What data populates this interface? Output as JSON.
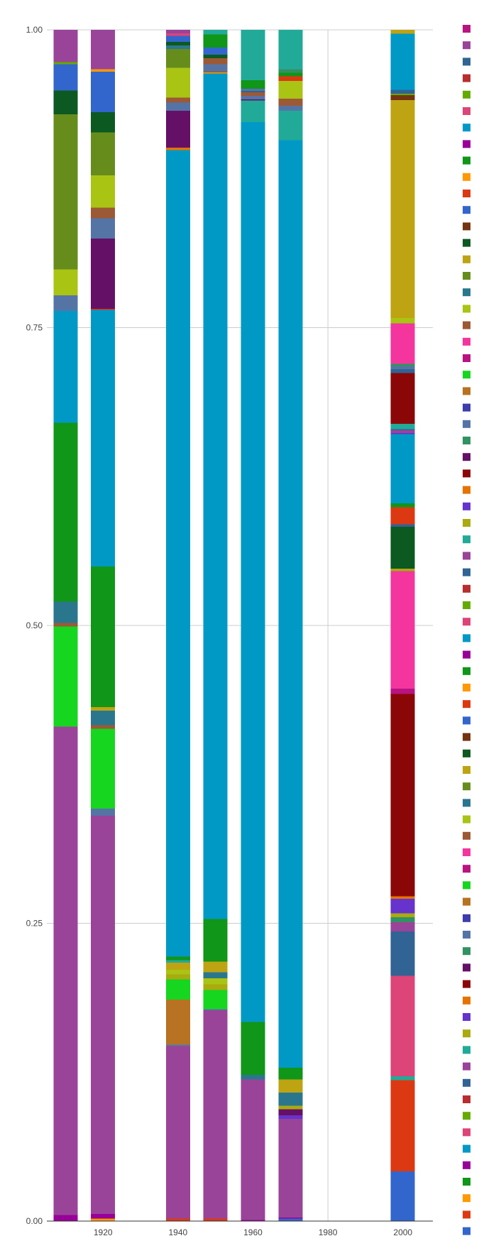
{
  "chart_data": {
    "type": "bar",
    "stacked": true,
    "normalized": true,
    "ylim": [
      0,
      1
    ],
    "yticks": [
      "0.00",
      "0.25",
      "0.50",
      "0.75",
      "1.00"
    ],
    "xlim": [
      1905,
      2008
    ],
    "xticks": [
      "1920",
      "1940",
      "1960",
      "1980",
      "2000"
    ],
    "grid": true,
    "legend": "right",
    "title": "",
    "xlabel": "",
    "ylabel": "",
    "palette": [
      "#3366cc",
      "#dc3912",
      "#ff9900",
      "#109618",
      "#990099",
      "#0099c6",
      "#dd4477",
      "#66aa00",
      "#b82e2e",
      "#316395",
      "#994499",
      "#22aa99",
      "#aaaa11",
      "#6633cc",
      "#e67300",
      "#8b0707",
      "#651067",
      "#329262",
      "#5574a6",
      "#3b3eac",
      "#b77322",
      "#16d620",
      "#b91383",
      "#f4359e",
      "#9c5935",
      "#a9c413",
      "#2a778d",
      "#668d1c",
      "#bea413",
      "#0c5922",
      "#743411"
    ],
    "bars": [
      {
        "x": 1910,
        "segments": [
          {
            "c": 4,
            "v": 0.005
          },
          {
            "c": 10,
            "v": 0.41
          },
          {
            "c": 21,
            "v": 0.084
          },
          {
            "c": 24,
            "v": 0.003
          },
          {
            "c": 26,
            "v": 0.018
          },
          {
            "c": 3,
            "v": 0.15
          },
          {
            "c": 5,
            "v": 0.094
          },
          {
            "c": 18,
            "v": 0.013
          },
          {
            "c": 25,
            "v": 0.022
          },
          {
            "c": 27,
            "v": 0.13
          },
          {
            "c": 29,
            "v": 0.02
          },
          {
            "c": 0,
            "v": 0.022
          },
          {
            "c": 7,
            "v": 0.002
          },
          {
            "c": 10,
            "v": 0.027
          }
        ]
      },
      {
        "x": 1920,
        "segments": [
          {
            "c": 2,
            "v": 0.002
          },
          {
            "c": 4,
            "v": 0.004
          },
          {
            "c": 10,
            "v": 0.334
          },
          {
            "c": 18,
            "v": 0.006
          },
          {
            "c": 21,
            "v": 0.067
          },
          {
            "c": 24,
            "v": 0.003
          },
          {
            "c": 26,
            "v": 0.012
          },
          {
            "c": 28,
            "v": 0.003
          },
          {
            "c": 3,
            "v": 0.118
          },
          {
            "c": 5,
            "v": 0.215
          },
          {
            "c": 1,
            "v": 0.001
          },
          {
            "c": 16,
            "v": 0.059
          },
          {
            "c": 18,
            "v": 0.017
          },
          {
            "c": 24,
            "v": 0.009
          },
          {
            "c": 25,
            "v": 0.027
          },
          {
            "c": 27,
            "v": 0.036
          },
          {
            "c": 29,
            "v": 0.017
          },
          {
            "c": 0,
            "v": 0.034
          },
          {
            "c": 2,
            "v": 0.002
          },
          {
            "c": 10,
            "v": 0.033
          }
        ]
      },
      {
        "x": 1940,
        "segments": [
          {
            "c": 1,
            "v": 0.002
          },
          {
            "c": 10,
            "v": 0.145
          },
          {
            "c": 18,
            "v": 0.001
          },
          {
            "c": 20,
            "v": 0.038
          },
          {
            "c": 21,
            "v": 0.017
          },
          {
            "c": 12,
            "v": 0.004
          },
          {
            "c": 25,
            "v": 0.004
          },
          {
            "c": 28,
            "v": 0.006
          },
          {
            "c": 11,
            "v": 0.002
          },
          {
            "c": 3,
            "v": 0.003
          },
          {
            "c": 5,
            "v": 0.677
          },
          {
            "c": 14,
            "v": 0.002
          },
          {
            "c": 16,
            "v": 0.031
          },
          {
            "c": 18,
            "v": 0.007
          },
          {
            "c": 24,
            "v": 0.004
          },
          {
            "c": 25,
            "v": 0.025
          },
          {
            "c": 27,
            "v": 0.016
          },
          {
            "c": 26,
            "v": 0.003
          },
          {
            "c": 29,
            "v": 0.003
          },
          {
            "c": 0,
            "v": 0.005
          },
          {
            "c": 6,
            "v": 0.002
          },
          {
            "c": 10,
            "v": 0.003
          }
        ]
      },
      {
        "x": 1950,
        "segments": [
          {
            "c": 1,
            "v": 0.002
          },
          {
            "c": 10,
            "v": 0.176
          },
          {
            "c": 18,
            "v": 0.001
          },
          {
            "c": 21,
            "v": 0.016
          },
          {
            "c": 12,
            "v": 0.005
          },
          {
            "c": 25,
            "v": 0.005
          },
          {
            "c": 26,
            "v": 0.005
          },
          {
            "c": 28,
            "v": 0.009
          },
          {
            "c": 3,
            "v": 0.036
          },
          {
            "c": 5,
            "v": 0.714
          },
          {
            "c": 2,
            "v": 0.001
          },
          {
            "c": 24,
            "v": 0.001
          },
          {
            "c": 18,
            "v": 0.006
          },
          {
            "c": 24,
            "v": 0.005
          },
          {
            "c": 29,
            "v": 0.003
          },
          {
            "c": 0,
            "v": 0.006
          },
          {
            "c": 3,
            "v": 0.011
          },
          {
            "c": 11,
            "v": 0.004
          }
        ]
      },
      {
        "x": 1960,
        "segments": [
          {
            "c": 4,
            "v": 0.001
          },
          {
            "c": 10,
            "v": 0.117
          },
          {
            "c": 26,
            "v": 0.004
          },
          {
            "c": 3,
            "v": 0.044
          },
          {
            "c": 5,
            "v": 0.75
          },
          {
            "c": 11,
            "v": 0.018
          },
          {
            "c": 16,
            "v": 0.001
          },
          {
            "c": 18,
            "v": 0.003
          },
          {
            "c": 24,
            "v": 0.003
          },
          {
            "c": 9,
            "v": 0.001
          },
          {
            "c": 18,
            "v": 0.002
          },
          {
            "c": 3,
            "v": 0.007
          },
          {
            "c": 11,
            "v": 0.042
          }
        ]
      },
      {
        "x": 1970,
        "segments": [
          {
            "c": 0,
            "v": 0.002
          },
          {
            "c": 4,
            "v": 0.001
          },
          {
            "c": 10,
            "v": 0.083
          },
          {
            "c": 13,
            "v": 0.003
          },
          {
            "c": 16,
            "v": 0.005
          },
          {
            "c": 12,
            "v": 0.003
          },
          {
            "c": 26,
            "v": 0.011
          },
          {
            "c": 28,
            "v": 0.011
          },
          {
            "c": 3,
            "v": 0.01
          },
          {
            "c": 5,
            "v": 0.78
          },
          {
            "c": 11,
            "v": 0.025
          },
          {
            "c": 18,
            "v": 0.004
          },
          {
            "c": 24,
            "v": 0.006
          },
          {
            "c": 25,
            "v": 0.015
          },
          {
            "c": 1,
            "v": 0.004
          },
          {
            "c": 3,
            "v": 0.003
          },
          {
            "c": 17,
            "v": 0.003
          },
          {
            "c": 11,
            "v": 0.033
          }
        ]
      },
      {
        "x": 2000,
        "segments": [
          {
            "c": 0,
            "v": 0.038
          },
          {
            "c": 1,
            "v": 0.07
          },
          {
            "c": 11,
            "v": 0.003
          },
          {
            "c": 6,
            "v": 0.077
          },
          {
            "c": 9,
            "v": 0.034
          },
          {
            "c": 10,
            "v": 0.007
          },
          {
            "c": 17,
            "v": 0.004
          },
          {
            "c": 12,
            "v": 0.003
          },
          {
            "c": 13,
            "v": 0.011
          },
          {
            "c": 14,
            "v": 0.002
          },
          {
            "c": 15,
            "v": 0.155
          },
          {
            "c": 22,
            "v": 0.004
          },
          {
            "c": 23,
            "v": 0.09
          },
          {
            "c": 12,
            "v": 0.002
          },
          {
            "c": 29,
            "v": 0.032
          },
          {
            "c": 9,
            "v": 0.002
          },
          {
            "c": 1,
            "v": 0.013
          },
          {
            "c": 3,
            "v": 0.003
          },
          {
            "c": 5,
            "v": 0.053
          },
          {
            "c": 13,
            "v": 0.001
          },
          {
            "c": 10,
            "v": 0.002
          },
          {
            "c": 9,
            "v": 0.001
          },
          {
            "c": 11,
            "v": 0.004
          },
          {
            "c": 15,
            "v": 0.039
          },
          {
            "c": 9,
            "v": 0.003
          },
          {
            "c": 18,
            "v": 0.002
          },
          {
            "c": 17,
            "v": 0.002
          },
          {
            "c": 23,
            "v": 0.031
          },
          {
            "c": 25,
            "v": 0.004
          },
          {
            "c": 28,
            "v": 0.167
          },
          {
            "c": 30,
            "v": 0.004
          },
          {
            "c": 7,
            "v": 0.001
          },
          {
            "c": 9,
            "v": 0.003
          },
          {
            "c": 5,
            "v": 0.043
          },
          {
            "c": 28,
            "v": 0.003
          }
        ]
      }
    ],
    "legend_swatches": [
      22,
      10,
      9,
      8,
      7,
      6,
      5,
      4,
      3,
      2,
      1,
      0,
      30,
      29,
      28,
      27,
      26,
      25,
      24,
      23,
      22,
      21,
      20,
      19,
      18,
      17,
      16,
      15,
      14,
      13,
      12,
      11,
      10,
      9,
      8,
      7,
      6,
      5,
      4,
      3,
      2,
      1,
      0,
      30,
      29,
      28,
      27,
      26,
      25,
      24,
      23,
      22,
      21,
      20,
      19,
      18,
      17,
      16,
      15,
      14,
      13,
      12,
      11,
      10,
      9,
      8,
      7,
      6,
      5,
      4,
      3,
      2,
      1,
      0
    ]
  }
}
